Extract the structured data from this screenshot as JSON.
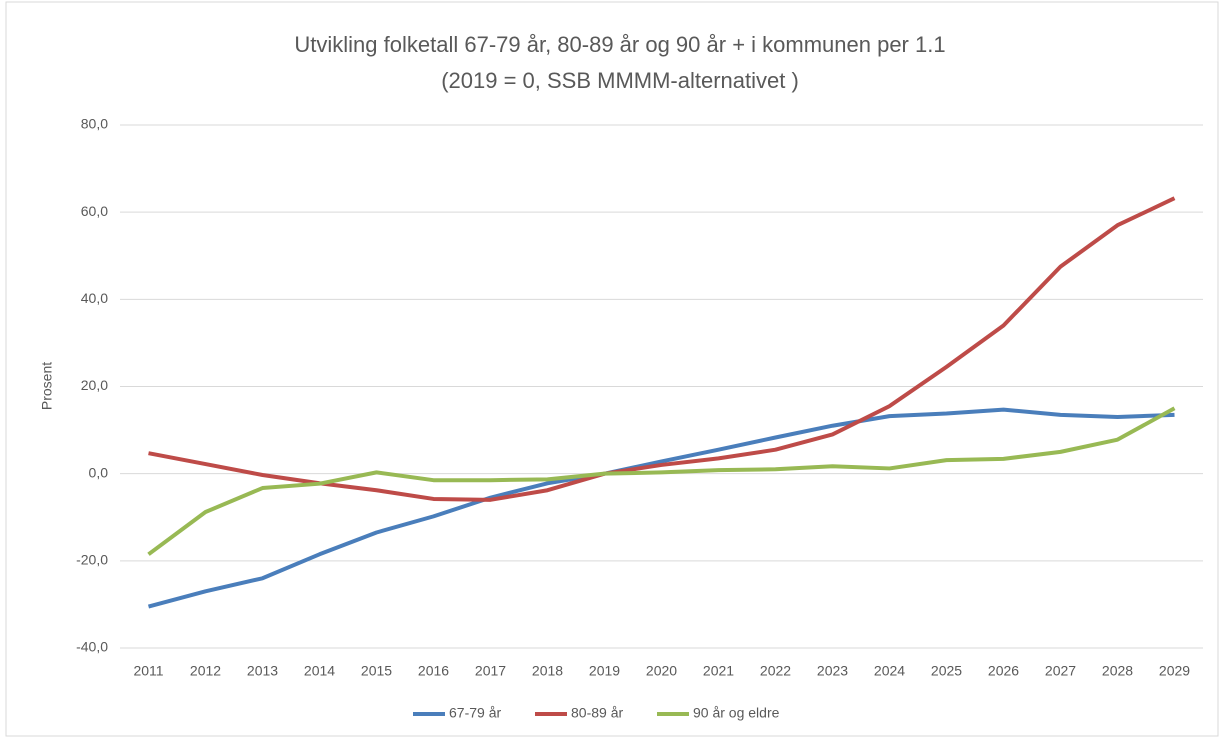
{
  "chart_data": {
    "type": "line",
    "title": "Utvikling folketall 67-79 år, 80-89 år og 90 år + i kommunen per 1.1",
    "subtitle": "(2019 = 0, SSB MMMM-alternativet )",
    "y_label": "Prosent",
    "categories": [
      "2011",
      "2012",
      "2013",
      "2014",
      "2015",
      "2016",
      "2017",
      "2018",
      "2019",
      "2020",
      "2021",
      "2022",
      "2023",
      "2024",
      "2025",
      "2026",
      "2027",
      "2028",
      "2029"
    ],
    "series": [
      {
        "name": "67-79 år",
        "color": "#4a7ebb",
        "values": [
          -30.5,
          -27,
          -24,
          -18.5,
          -13.5,
          -9.8,
          -5.5,
          -2.2,
          0,
          2.8,
          5.5,
          8.3,
          11,
          13.2,
          13.8,
          14.7,
          13.5,
          13,
          13.5
        ]
      },
      {
        "name": "80-89 år",
        "color": "#be4b48",
        "values": [
          4.7,
          2.2,
          -0.3,
          -2.2,
          -3.8,
          -5.8,
          -6,
          -3.8,
          0,
          2,
          3.5,
          5.5,
          9,
          15.5,
          24.5,
          34,
          47.5,
          57,
          63.2
        ]
      },
      {
        "name": "90 år og eldre",
        "color": "#98b954",
        "values": [
          -18.5,
          -8.8,
          -3.3,
          -2.3,
          0.3,
          -1.5,
          -1.5,
          -1.3,
          0,
          0.3,
          0.8,
          1,
          1.7,
          1.2,
          3.1,
          3.4,
          5,
          7.8,
          15
        ]
      }
    ],
    "ylim": [
      -40,
      80
    ],
    "yticks": [
      {
        "value": -40,
        "label": "-40,0"
      },
      {
        "value": -20,
        "label": "-20,0"
      },
      {
        "value": 0,
        "label": "0,0"
      },
      {
        "value": 20,
        "label": "20,0"
      },
      {
        "value": 40,
        "label": "40,0"
      },
      {
        "value": 60,
        "label": "60,0"
      },
      {
        "value": 80,
        "label": "80,0"
      }
    ],
    "grid": true,
    "legend": "bottom"
  }
}
